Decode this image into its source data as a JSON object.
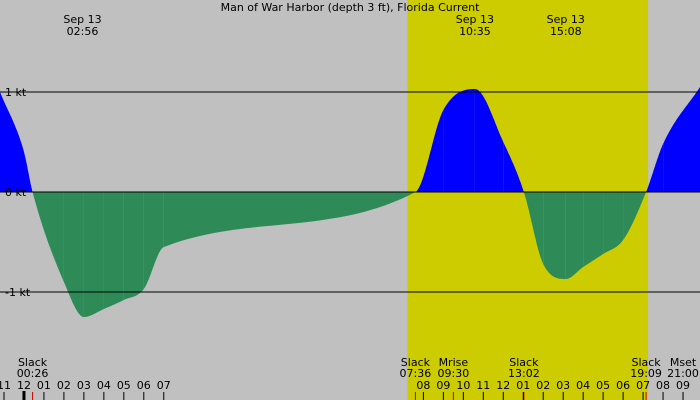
{
  "chart_data": {
    "type": "area",
    "title": "Man of War Harbor (depth 3 ft), Florida Current",
    "xlabel": "",
    "ylabel": "",
    "x_unit": "hour of day",
    "x_range_hours": [
      -13.2,
      21.85
    ],
    "ylim": [
      -1.75,
      1.95
    ],
    "daylight_hours": [
      7.2,
      19.25
    ],
    "y_ticks": [
      {
        "value": 1,
        "label": "1 kt"
      },
      {
        "value": 0,
        "label": "0 kt"
      },
      {
        "value": -1,
        "label": "-1 kt"
      }
    ],
    "x_tick_labels": [
      {
        "hour": -13,
        "label": "11"
      },
      {
        "hour": -12,
        "label": "12"
      },
      {
        "hour": -11,
        "label": "01"
      },
      {
        "hour": -10,
        "label": "02"
      },
      {
        "hour": -9,
        "label": "03"
      },
      {
        "hour": -8,
        "label": "04"
      },
      {
        "hour": -7,
        "label": "05"
      },
      {
        "hour": -6,
        "label": "06"
      },
      {
        "hour": -5,
        "label": "07"
      },
      {
        "hour": 8,
        "label": "08"
      },
      {
        "hour": 9,
        "label": "09"
      },
      {
        "hour": 10,
        "label": "10"
      },
      {
        "hour": 11,
        "label": "11"
      },
      {
        "hour": 12,
        "label": "12"
      },
      {
        "hour": 13,
        "label": "01"
      },
      {
        "hour": 14,
        "label": "02"
      },
      {
        "hour": 15,
        "label": "03"
      },
      {
        "hour": 16,
        "label": "04"
      },
      {
        "hour": 17,
        "label": "05"
      },
      {
        "hour": 18,
        "label": "06"
      },
      {
        "hour": 19,
        "label": "07"
      },
      {
        "hour": 20,
        "label": "08"
      },
      {
        "hour": 21,
        "label": "09"
      }
    ],
    "series": [
      {
        "x": [
          -13.2,
          -12,
          -11.57,
          -10,
          -9,
          -8,
          -7,
          -6,
          -5,
          7.6,
          9,
          10.58,
          12,
          13.03,
          14,
          15.13,
          16,
          17,
          18,
          19.15,
          20,
          21.85
        ],
        "y": [
          1.0,
          0.4,
          0,
          -0.9,
          -1.25,
          -1.17,
          -1.08,
          -0.97,
          -0.55,
          0,
          0.82,
          1.03,
          0.5,
          0,
          -0.72,
          -0.87,
          -0.75,
          -0.62,
          -0.48,
          0,
          0.48,
          1.05
        ]
      }
    ],
    "colors": {
      "flood": "#0000ff",
      "ebb": "#2e8b57",
      "daylight": "#cccc00",
      "night": "#c0c0c0"
    },
    "extreme_annotations": [
      {
        "hour": -9.07,
        "date": "Sep 13",
        "time": "02:56"
      },
      {
        "hour": 10.58,
        "date": "Sep 13",
        "time": "10:35"
      },
      {
        "hour": 15.13,
        "date": "Sep 13",
        "time": "15:08"
      }
    ],
    "event_annotations": [
      {
        "hour": -11.57,
        "label": "Slack",
        "time": "00:26"
      },
      {
        "hour": 7.6,
        "label": "Slack",
        "time": "07:36"
      },
      {
        "hour": 9.5,
        "label": "Mrise",
        "time": "09:30"
      },
      {
        "hour": 13.03,
        "label": "Slack",
        "time": "13:02"
      },
      {
        "hour": 19.15,
        "label": "Slack",
        "time": "19:09"
      },
      {
        "hour": 21.0,
        "label": "Mset",
        "time": "21:00"
      }
    ]
  }
}
